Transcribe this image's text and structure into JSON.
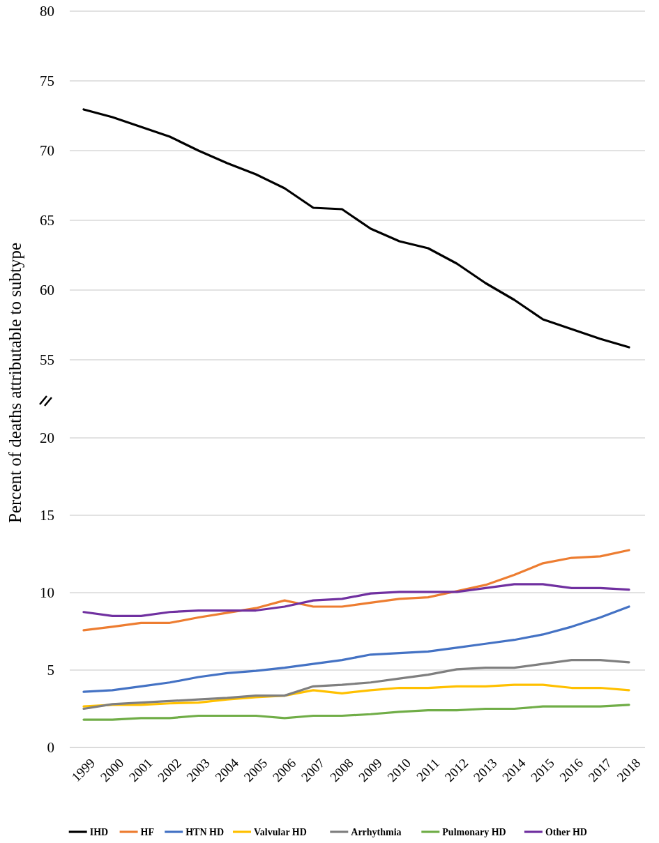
{
  "chart_data": [
    {
      "type": "line",
      "ylabel": "Percent of deaths attributable to subtype",
      "categories": [
        "1999",
        "2000",
        "2001",
        "2002",
        "2003",
        "2004",
        "2005",
        "2006",
        "2007",
        "2008",
        "2009",
        "2010",
        "2011",
        "2012",
        "2013",
        "2014",
        "2015",
        "2016",
        "2017",
        "2018"
      ],
      "ylim": [
        55,
        80
      ],
      "yticks": [
        55,
        60,
        65,
        70,
        75,
        80
      ],
      "grid": "y",
      "tick_labels": "y",
      "legend": "bottom",
      "marker": "none",
      "line_style": "solid",
      "series": [
        {
          "name": "IHD",
          "color": "#000000",
          "values": [
            72.95,
            72.4,
            71.7,
            71.0,
            70.0,
            69.1,
            68.3,
            67.3,
            65.9,
            65.8,
            64.4,
            63.5,
            63.0,
            61.9,
            60.5,
            59.3,
            57.9,
            57.2,
            56.5,
            55.9
          ]
        }
      ]
    },
    {
      "type": "line",
      "categories": [
        "1999",
        "2000",
        "2001",
        "2002",
        "2003",
        "2004",
        "2005",
        "2006",
        "2007",
        "2008",
        "2009",
        "2010",
        "2011",
        "2012",
        "2013",
        "2014",
        "2015",
        "2016",
        "2017",
        "2018"
      ],
      "ylim": [
        0,
        20
      ],
      "yticks": [
        0,
        5,
        10,
        15,
        20
      ],
      "grid": "y",
      "legend": "bottom",
      "marker": "none",
      "line_style": "solid",
      "series": [
        {
          "name": "HF",
          "color": "#ed7d31",
          "values": [
            7.57,
            7.8,
            8.05,
            8.05,
            8.4,
            8.7,
            9.0,
            9.5,
            9.1,
            9.1,
            9.35,
            9.6,
            9.7,
            10.1,
            10.5,
            11.15,
            11.9,
            12.25,
            12.35,
            12.75
          ]
        },
        {
          "name": "HTN HD",
          "color": "#4472c4",
          "values": [
            3.6,
            3.7,
            3.95,
            4.2,
            4.55,
            4.8,
            4.95,
            5.15,
            5.4,
            5.65,
            6.0,
            6.1,
            6.2,
            6.45,
            6.7,
            6.95,
            7.3,
            7.8,
            8.4,
            9.1
          ]
        },
        {
          "name": "Valvular HD",
          "color": "#ffc000",
          "values": [
            2.65,
            2.75,
            2.75,
            2.85,
            2.9,
            3.1,
            3.25,
            3.35,
            3.7,
            3.5,
            3.7,
            3.85,
            3.85,
            3.95,
            3.95,
            4.05,
            4.05,
            3.85,
            3.85,
            3.7
          ]
        },
        {
          "name": "Arrhythmia",
          "color": "#7f7f7f",
          "values": [
            2.5,
            2.8,
            2.9,
            3.0,
            3.1,
            3.2,
            3.35,
            3.35,
            3.95,
            4.05,
            4.2,
            4.45,
            4.7,
            5.05,
            5.15,
            5.15,
            5.4,
            5.65,
            5.65,
            5.5
          ]
        },
        {
          "name": "Pulmonary HD",
          "color": "#70ad47",
          "values": [
            1.8,
            1.8,
            1.9,
            1.9,
            2.05,
            2.05,
            2.05,
            1.9,
            2.05,
            2.05,
            2.15,
            2.3,
            2.4,
            2.4,
            2.5,
            2.5,
            2.65,
            2.65,
            2.65,
            2.75
          ]
        },
        {
          "name": "Other HD",
          "color": "#7030a0",
          "values": [
            8.75,
            8.5,
            8.5,
            8.75,
            8.85,
            8.85,
            8.85,
            9.1,
            9.5,
            9.6,
            9.95,
            10.05,
            10.05,
            10.05,
            10.3,
            10.55,
            10.55,
            10.3,
            10.3,
            10.2
          ]
        }
      ]
    }
  ]
}
